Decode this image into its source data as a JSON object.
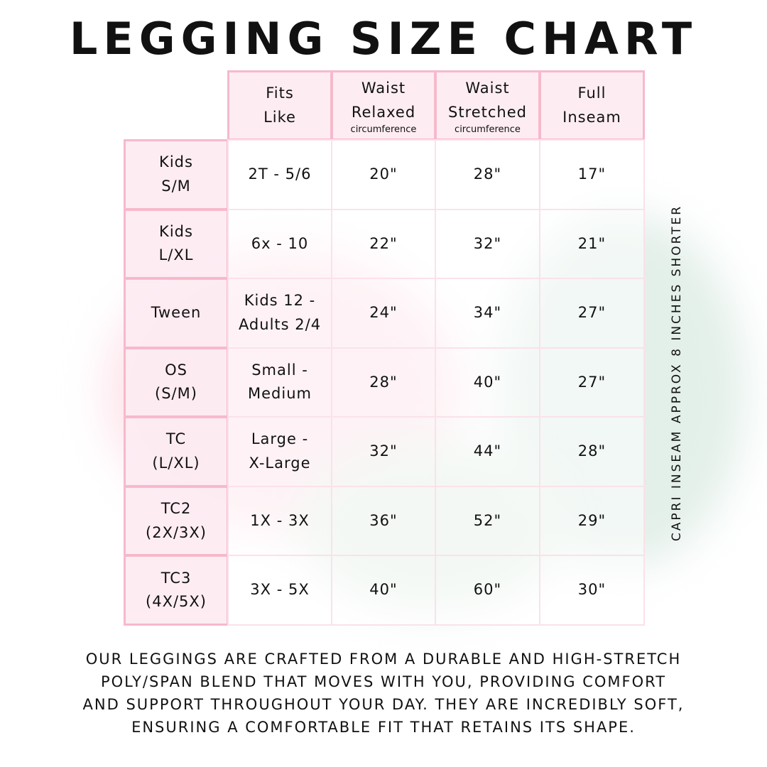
{
  "title": "LEGGING SIZE CHART",
  "colors": {
    "header_fill": "#fdecf2",
    "header_border": "#f7b9cc",
    "body_border": "#fbe1ea"
  },
  "table": {
    "headers": [
      {
        "line1": "Fits",
        "line2": "Like",
        "sub": ""
      },
      {
        "line1": "Waist",
        "line2": "Relaxed",
        "sub": "circumference"
      },
      {
        "line1": "Waist",
        "line2": "Stretched",
        "sub": "circumference"
      },
      {
        "line1": "Full",
        "line2": "Inseam",
        "sub": ""
      }
    ],
    "rows": [
      {
        "size1": "Kids",
        "size2": "S/M",
        "fits1": "2T - 5/6",
        "fits2": "",
        "relaxed": "20\"",
        "stretched": "28\"",
        "inseam": "17\""
      },
      {
        "size1": "Kids",
        "size2": "L/XL",
        "fits1": "6x - 10",
        "fits2": "",
        "relaxed": "22\"",
        "stretched": "32\"",
        "inseam": "21\""
      },
      {
        "size1": "Tween",
        "size2": "",
        "fits1": "Kids 12 -",
        "fits2": "Adults 2/4",
        "relaxed": "24\"",
        "stretched": "34\"",
        "inseam": "27\""
      },
      {
        "size1": "OS",
        "size2": "(S/M)",
        "fits1": "Small -",
        "fits2": "Medium",
        "relaxed": "28\"",
        "stretched": "40\"",
        "inseam": "27\""
      },
      {
        "size1": "TC",
        "size2": "(L/XL)",
        "fits1": "Large -",
        "fits2": "X-Large",
        "relaxed": "32\"",
        "stretched": "44\"",
        "inseam": "28\""
      },
      {
        "size1": "TC2",
        "size2": "(2X/3X)",
        "fits1": "1X - 3X",
        "fits2": "",
        "relaxed": "36\"",
        "stretched": "52\"",
        "inseam": "29\""
      },
      {
        "size1": "TC3",
        "size2": "(4X/5X)",
        "fits1": "3X - 5X",
        "fits2": "",
        "relaxed": "40\"",
        "stretched": "60\"",
        "inseam": "30\""
      }
    ]
  },
  "side_note": "CAPRI INSEAM APPROX 8 INCHES SHORTER",
  "description": [
    "Our leggings are crafted from a durable and high-stretch",
    "poly/span blend that moves with you, providing comfort",
    "and support throughout your day. They are incredibly soft,",
    "ensuring a comfortable fit that retains its shape."
  ]
}
